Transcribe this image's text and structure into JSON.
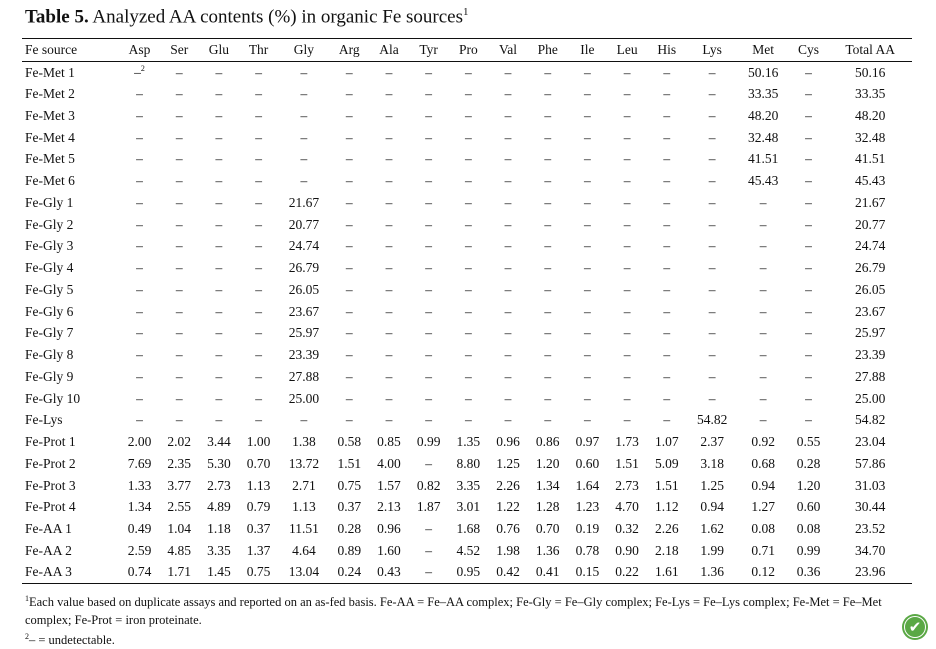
{
  "title": {
    "label": "Table 5.",
    "text": "Analyzed AA contents (%) in organic Fe sources",
    "sup": "1"
  },
  "table": {
    "columns": [
      "Fe source",
      "Asp",
      "Ser",
      "Glu",
      "Thr",
      "Gly",
      "Arg",
      "Ala",
      "Tyr",
      "Pro",
      "Val",
      "Phe",
      "Ile",
      "Leu",
      "His",
      "Lys",
      "Met",
      "Cys",
      "Total AA"
    ],
    "rows": [
      [
        "Fe-Met 1",
        "–",
        "–",
        "–",
        "–",
        "–",
        "–",
        "–",
        "–",
        "–",
        "–",
        "–",
        "–",
        "–",
        "–",
        "–",
        "50.16",
        "–",
        "50.16"
      ],
      [
        "Fe-Met 2",
        "–",
        "–",
        "–",
        "–",
        "–",
        "–",
        "–",
        "–",
        "–",
        "–",
        "–",
        "–",
        "–",
        "–",
        "–",
        "33.35",
        "–",
        "33.35"
      ],
      [
        "Fe-Met 3",
        "–",
        "–",
        "–",
        "–",
        "–",
        "–",
        "–",
        "–",
        "–",
        "–",
        "–",
        "–",
        "–",
        "–",
        "–",
        "48.20",
        "–",
        "48.20"
      ],
      [
        "Fe-Met 4",
        "–",
        "–",
        "–",
        "–",
        "–",
        "–",
        "–",
        "–",
        "–",
        "–",
        "–",
        "–",
        "–",
        "–",
        "–",
        "32.48",
        "–",
        "32.48"
      ],
      [
        "Fe-Met 5",
        "–",
        "–",
        "–",
        "–",
        "–",
        "–",
        "–",
        "–",
        "–",
        "–",
        "–",
        "–",
        "–",
        "–",
        "–",
        "41.51",
        "–",
        "41.51"
      ],
      [
        "Fe-Met 6",
        "–",
        "–",
        "–",
        "–",
        "–",
        "–",
        "–",
        "–",
        "–",
        "–",
        "–",
        "–",
        "–",
        "–",
        "–",
        "45.43",
        "–",
        "45.43"
      ],
      [
        "Fe-Gly 1",
        "–",
        "–",
        "–",
        "–",
        "21.67",
        "–",
        "–",
        "–",
        "–",
        "–",
        "–",
        "–",
        "–",
        "–",
        "–",
        "–",
        "–",
        "21.67"
      ],
      [
        "Fe-Gly 2",
        "–",
        "–",
        "–",
        "–",
        "20.77",
        "–",
        "–",
        "–",
        "–",
        "–",
        "–",
        "–",
        "–",
        "–",
        "–",
        "–",
        "–",
        "20.77"
      ],
      [
        "Fe-Gly 3",
        "–",
        "–",
        "–",
        "–",
        "24.74",
        "–",
        "–",
        "–",
        "–",
        "–",
        "–",
        "–",
        "–",
        "–",
        "–",
        "–",
        "–",
        "24.74"
      ],
      [
        "Fe-Gly 4",
        "–",
        "–",
        "–",
        "–",
        "26.79",
        "–",
        "–",
        "–",
        "–",
        "–",
        "–",
        "–",
        "–",
        "–",
        "–",
        "–",
        "–",
        "26.79"
      ],
      [
        "Fe-Gly 5",
        "–",
        "–",
        "–",
        "–",
        "26.05",
        "–",
        "–",
        "–",
        "–",
        "–",
        "–",
        "–",
        "–",
        "–",
        "–",
        "–",
        "–",
        "26.05"
      ],
      [
        "Fe-Gly 6",
        "–",
        "–",
        "–",
        "–",
        "23.67",
        "–",
        "–",
        "–",
        "–",
        "–",
        "–",
        "–",
        "–",
        "–",
        "–",
        "–",
        "–",
        "23.67"
      ],
      [
        "Fe-Gly 7",
        "–",
        "–",
        "–",
        "–",
        "25.97",
        "–",
        "–",
        "–",
        "–",
        "–",
        "–",
        "–",
        "–",
        "–",
        "–",
        "–",
        "–",
        "25.97"
      ],
      [
        "Fe-Gly 8",
        "–",
        "–",
        "–",
        "–",
        "23.39",
        "–",
        "–",
        "–",
        "–",
        "–",
        "–",
        "–",
        "–",
        "–",
        "–",
        "–",
        "–",
        "23.39"
      ],
      [
        "Fe-Gly 9",
        "–",
        "–",
        "–",
        "–",
        "27.88",
        "–",
        "–",
        "–",
        "–",
        "–",
        "–",
        "–",
        "–",
        "–",
        "–",
        "–",
        "–",
        "27.88"
      ],
      [
        "Fe-Gly 10",
        "–",
        "–",
        "–",
        "–",
        "25.00",
        "–",
        "–",
        "–",
        "–",
        "–",
        "–",
        "–",
        "–",
        "–",
        "–",
        "–",
        "–",
        "25.00"
      ],
      [
        "Fe-Lys",
        "–",
        "–",
        "–",
        "–",
        "–",
        "–",
        "–",
        "–",
        "–",
        "–",
        "–",
        "–",
        "–",
        "–",
        "54.82",
        "–",
        "–",
        "54.82"
      ],
      [
        "Fe-Prot 1",
        "2.00",
        "2.02",
        "3.44",
        "1.00",
        "1.38",
        "0.58",
        "0.85",
        "0.99",
        "1.35",
        "0.96",
        "0.86",
        "0.97",
        "1.73",
        "1.07",
        "2.37",
        "0.92",
        "0.55",
        "23.04"
      ],
      [
        "Fe-Prot 2",
        "7.69",
        "2.35",
        "5.30",
        "0.70",
        "13.72",
        "1.51",
        "4.00",
        "–",
        "8.80",
        "1.25",
        "1.20",
        "0.60",
        "1.51",
        "5.09",
        "3.18",
        "0.68",
        "0.28",
        "57.86"
      ],
      [
        "Fe-Prot 3",
        "1.33",
        "3.77",
        "2.73",
        "1.13",
        "2.71",
        "0.75",
        "1.57",
        "0.82",
        "3.35",
        "2.26",
        "1.34",
        "1.64",
        "2.73",
        "1.51",
        "1.25",
        "0.94",
        "1.20",
        "31.03"
      ],
      [
        "Fe-Prot 4",
        "1.34",
        "2.55",
        "4.89",
        "0.79",
        "1.13",
        "0.37",
        "2.13",
        "1.87",
        "3.01",
        "1.22",
        "1.28",
        "1.23",
        "4.70",
        "1.12",
        "0.94",
        "1.27",
        "0.60",
        "30.44"
      ],
      [
        "Fe-AA 1",
        "0.49",
        "1.04",
        "1.18",
        "0.37",
        "11.51",
        "0.28",
        "0.96",
        "–",
        "1.68",
        "0.76",
        "0.70",
        "0.19",
        "0.32",
        "2.26",
        "1.62",
        "0.08",
        "0.08",
        "23.52"
      ],
      [
        "Fe-AA 2",
        "2.59",
        "4.85",
        "3.35",
        "1.37",
        "4.64",
        "0.89",
        "1.60",
        "–",
        "4.52",
        "1.98",
        "1.36",
        "0.78",
        "0.90",
        "2.18",
        "1.99",
        "0.71",
        "0.99",
        "34.70"
      ],
      [
        "Fe-AA 3",
        "0.74",
        "1.71",
        "1.45",
        "0.75",
        "13.04",
        "0.24",
        "0.43",
        "–",
        "0.95",
        "0.42",
        "0.41",
        "0.15",
        "0.22",
        "1.61",
        "1.36",
        "0.12",
        "0.36",
        "23.96"
      ]
    ],
    "first_cell_mark": "2"
  },
  "footnotes": {
    "n1_sup": "1",
    "n1_text": "Each value based on duplicate assays and reported on an as-fed basis. Fe-AA = Fe–AA complex; Fe-Gly = Fe–Gly complex; Fe-Lys = Fe–Lys complex; Fe-Met = Fe–Met complex; Fe-Prot = iron proteinate.",
    "n2_sup": "2",
    "n2_text": "– = undetectable."
  },
  "badge": {
    "icon": "leaf-icon",
    "color": "#5aa845"
  }
}
